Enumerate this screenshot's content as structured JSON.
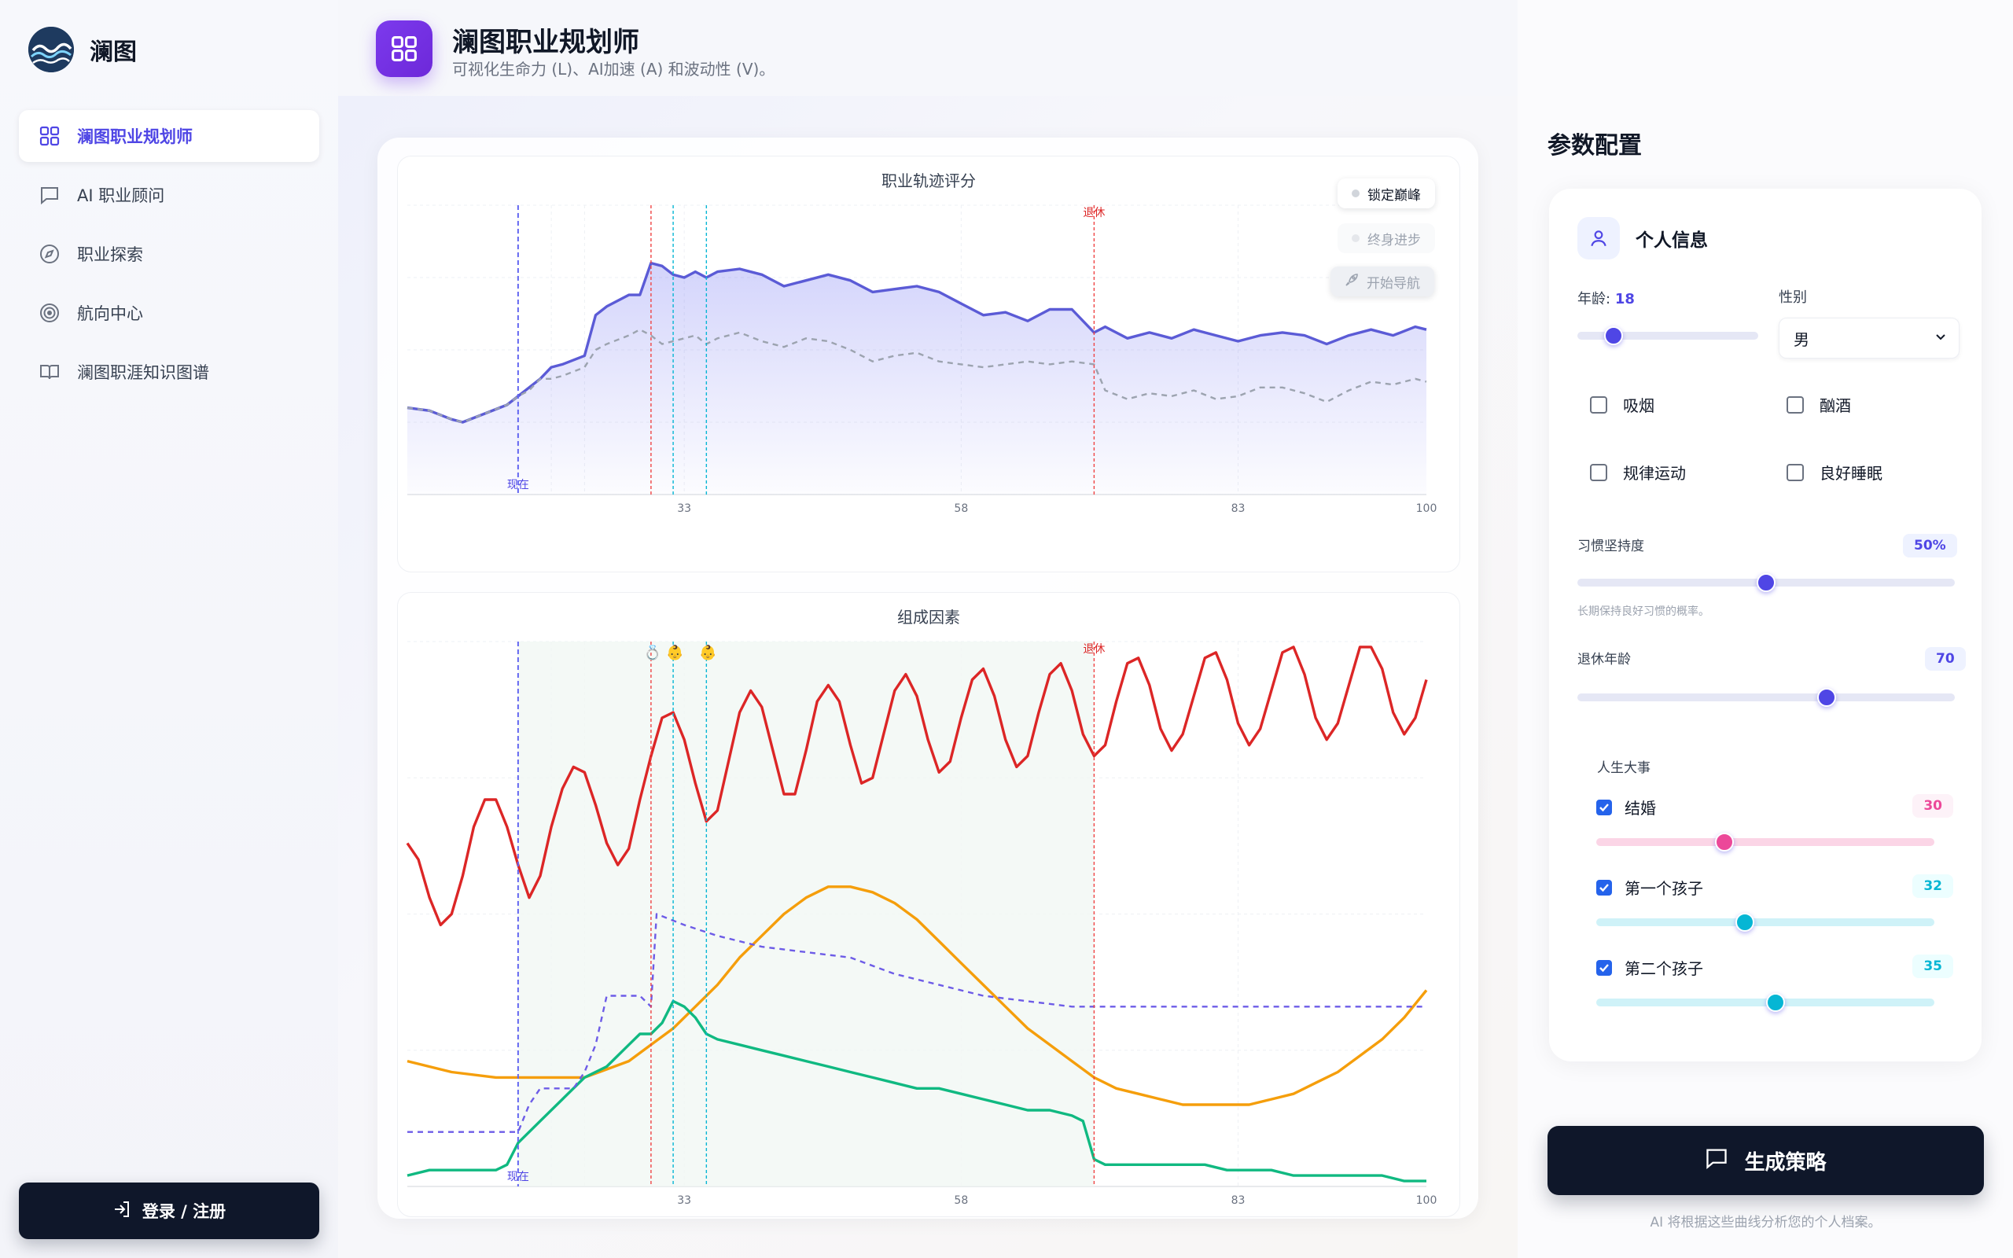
{
  "brand": {
    "name": "澜图"
  },
  "sidebar": {
    "items": [
      {
        "label": "澜图职业规划师",
        "icon": "grid-icon",
        "active": true
      },
      {
        "label": "AI 职业顾问",
        "icon": "chat-icon",
        "active": false
      },
      {
        "label": "职业探索",
        "icon": "compass-icon",
        "active": false
      },
      {
        "label": "航向中心",
        "icon": "target-icon",
        "active": false
      },
      {
        "label": "澜图职涯知识图谱",
        "icon": "book-icon",
        "active": false
      }
    ],
    "login_label": "登录 / 注册"
  },
  "header": {
    "title": "澜图职业规划师",
    "subtitle": "可视化生命力 (L)、AI加速 (A) 和波动性 (V)。"
  },
  "floating": {
    "lock_peak": "锁定巅峰",
    "lifelong": "终身进步",
    "start_nav": "开始导航"
  },
  "chart_data": [
    {
      "type": "area",
      "title": "职业轨迹评分",
      "x_ticks": [
        "33",
        "58",
        "83",
        "100"
      ],
      "xlim": [
        8,
        100
      ],
      "ylim": [
        0,
        100
      ],
      "markers": {
        "now_label": "现在",
        "now_age": 18,
        "retire_label": "退休",
        "retire_age": 70
      },
      "series": [
        {
          "style": "solid",
          "color": "#5b5bd6",
          "x": [
            8,
            10,
            12,
            13,
            15,
            17,
            18,
            19,
            20,
            21,
            22,
            24,
            25,
            26,
            28,
            29,
            30,
            31,
            32,
            33,
            34,
            35,
            36,
            38,
            40,
            42,
            44,
            46,
            48,
            50,
            52,
            54,
            56,
            58,
            60,
            62,
            64,
            66,
            68,
            70,
            71,
            73,
            75,
            77,
            79,
            81,
            83,
            85,
            87,
            89,
            91,
            93,
            95,
            97,
            99,
            100
          ],
          "y": [
            30,
            29,
            26,
            25,
            28,
            31,
            34,
            37,
            40,
            44,
            45,
            48,
            62,
            65,
            69,
            69,
            80,
            79,
            76,
            75,
            77,
            75,
            77,
            78,
            76,
            72,
            74,
            76,
            74,
            70,
            71,
            72,
            70,
            66,
            62,
            63,
            60,
            64,
            64,
            56,
            58,
            54,
            56,
            54,
            57,
            55,
            53,
            55,
            56,
            55,
            52,
            55,
            57,
            55,
            58,
            57
          ]
        },
        {
          "style": "dashed",
          "color": "#9ca3af",
          "x": [
            8,
            10,
            12,
            13,
            15,
            17,
            18,
            19,
            20,
            21,
            22,
            24,
            25,
            26,
            28,
            29,
            30,
            31,
            32,
            33,
            34,
            35,
            36,
            38,
            40,
            42,
            44,
            46,
            48,
            50,
            52,
            54,
            56,
            58,
            60,
            62,
            64,
            66,
            68,
            70,
            71,
            73,
            75,
            77,
            79,
            81,
            83,
            85,
            87,
            89,
            91,
            93,
            95,
            97,
            99,
            100
          ],
          "y": [
            30,
            29,
            26,
            25,
            28,
            31,
            34,
            36,
            40,
            40,
            41,
            44,
            50,
            52,
            55,
            57,
            55,
            52,
            53,
            54,
            55,
            52,
            54,
            56,
            53,
            51,
            54,
            53,
            50,
            46,
            48,
            49,
            46,
            45,
            44,
            45,
            46,
            45,
            46,
            45,
            36,
            33,
            35,
            34,
            36,
            33,
            34,
            37,
            37,
            35,
            32,
            36,
            39,
            38,
            40,
            39
          ]
        }
      ]
    },
    {
      "type": "line",
      "title": "组成因素",
      "x_ticks": [
        "33",
        "58",
        "83",
        "100"
      ],
      "xlim": [
        8,
        100
      ],
      "ylim": [
        0,
        100
      ],
      "markers": {
        "now_label": "现在",
        "retire_label": "退休",
        "events": [
          "💍",
          "👶",
          "👶"
        ]
      },
      "series": [
        {
          "style": "solid",
          "color": "#dc2626",
          "x": [
            8,
            9,
            10,
            11,
            12,
            13,
            14,
            15,
            16,
            17,
            18,
            19,
            20,
            21,
            22,
            23,
            24,
            25,
            26,
            27,
            28,
            29,
            30,
            31,
            32,
            33,
            34,
            35,
            36,
            37,
            38,
            39,
            40,
            41,
            42,
            43,
            44,
            45,
            46,
            47,
            48,
            49,
            50,
            51,
            52,
            53,
            54,
            55,
            56,
            57,
            58,
            59,
            60,
            61,
            62,
            63,
            64,
            65,
            66,
            67,
            68,
            69,
            70,
            71,
            72,
            73,
            74,
            75,
            76,
            77,
            78,
            79,
            80,
            81,
            82,
            83,
            84,
            85,
            86,
            87,
            88,
            89,
            90,
            91,
            92,
            93,
            94,
            95,
            96,
            97,
            98,
            99,
            100
          ],
          "y": [
            63,
            60,
            53,
            48,
            50,
            57,
            66,
            71,
            71,
            66,
            59,
            53,
            57,
            66,
            73,
            77,
            76,
            70,
            63,
            59,
            62,
            71,
            79,
            86,
            87,
            82,
            74,
            67,
            69,
            78,
            87,
            91,
            88,
            80,
            72,
            72,
            80,
            89,
            92,
            89,
            81,
            74,
            75,
            83,
            91,
            94,
            90,
            82,
            76,
            78,
            86,
            93,
            95,
            90,
            82,
            77,
            79,
            87,
            94,
            96,
            91,
            83,
            79,
            81,
            89,
            96,
            97,
            92,
            84,
            80,
            83,
            90,
            97,
            98,
            93,
            85,
            81,
            84,
            91,
            98,
            99,
            94,
            86,
            82,
            85,
            92,
            99,
            99,
            95,
            87,
            83,
            86,
            93
          ]
        },
        {
          "style": "solid",
          "color": "#f59e0b",
          "x": [
            8,
            12,
            16,
            20,
            24,
            28,
            30,
            32,
            34,
            36,
            38,
            40,
            42,
            44,
            46,
            48,
            50,
            52,
            54,
            56,
            58,
            60,
            62,
            64,
            66,
            68,
            70,
            72,
            74,
            76,
            78,
            80,
            82,
            84,
            86,
            88,
            90,
            92,
            94,
            96,
            98,
            100
          ],
          "y": [
            23,
            21,
            20,
            20,
            20,
            23,
            26,
            29,
            33,
            37,
            42,
            46,
            50,
            53,
            55,
            55,
            54,
            52,
            49,
            45,
            41,
            37,
            33,
            29,
            26,
            23,
            20,
            18,
            17,
            16,
            15,
            15,
            15,
            15,
            16,
            17,
            19,
            21,
            24,
            27,
            31,
            36
          ]
        },
        {
          "style": "solid",
          "color": "#10b981",
          "x": [
            8,
            10,
            12,
            14,
            16,
            17,
            18,
            20,
            22,
            24,
            26,
            28,
            29,
            30,
            31,
            32,
            33,
            34,
            35,
            36,
            38,
            40,
            42,
            44,
            46,
            48,
            50,
            52,
            54,
            56,
            58,
            60,
            62,
            64,
            66,
            68,
            69,
            70,
            71,
            72,
            74,
            76,
            78,
            80,
            82,
            84,
            86,
            88,
            90,
            92,
            94,
            96,
            98,
            100
          ],
          "y": [
            2,
            3,
            3,
            3,
            3,
            4,
            8,
            12,
            16,
            20,
            22,
            26,
            28,
            28,
            30,
            34,
            33,
            31,
            28,
            27,
            26,
            25,
            24,
            23,
            22,
            21,
            20,
            19,
            18,
            18,
            17,
            16,
            15,
            14,
            14,
            13,
            12,
            5,
            4,
            4,
            4,
            4,
            4,
            4,
            3,
            3,
            3,
            2,
            2,
            2,
            2,
            2,
            1,
            1
          ]
        },
        {
          "style": "dashed",
          "color": "#6d5ce7",
          "x": [
            8,
            12,
            16,
            17,
            18,
            19,
            20,
            21,
            22,
            23,
            24,
            25,
            26,
            27,
            28,
            29,
            30,
            30.5,
            33,
            36,
            40,
            44,
            48,
            52,
            56,
            60,
            64,
            68,
            70,
            74,
            78,
            82,
            86,
            90,
            94,
            98,
            100
          ],
          "y": [
            10,
            10,
            10,
            10,
            10,
            15,
            18,
            18,
            18,
            18,
            21,
            26,
            35,
            35,
            35,
            35,
            33,
            50,
            48,
            46,
            44,
            43,
            42,
            39,
            37,
            35,
            34,
            33,
            33,
            33,
            33,
            33,
            33,
            33,
            33,
            33,
            33
          ]
        }
      ]
    }
  ],
  "config": {
    "title": "参数配置",
    "personal_info": "个人信息",
    "age_label": "年龄:",
    "age_value": "18",
    "age_fraction": 0.2,
    "gender_label": "性别",
    "gender_value": "男",
    "habits": [
      {
        "label": "吸烟",
        "checked": false
      },
      {
        "label": "酗酒",
        "checked": false
      },
      {
        "label": "规律运动",
        "checked": false
      },
      {
        "label": "良好睡眠",
        "checked": false
      }
    ],
    "habit_persistence_label": "习惯坚持度",
    "habit_persistence_value": "50%",
    "habit_persistence_fraction": 0.5,
    "habit_hint": "长期保持良好习惯的概率。",
    "retire_label": "退休年龄",
    "retire_value": "70",
    "retire_fraction": 0.66,
    "life_events_label": "人生大事",
    "events": [
      {
        "label": "结婚",
        "value": "30",
        "checked": true,
        "fraction": 0.38,
        "color": "#ec4899",
        "track": "#fbd5e6",
        "badge_bg": "#fdf2f8"
      },
      {
        "label": "第一个孩子",
        "value": "32",
        "checked": true,
        "fraction": 0.44,
        "color": "#06b6d4",
        "track": "#cff2f8",
        "badge_bg": "#ecfeff"
      },
      {
        "label": "第二个孩子",
        "value": "35",
        "checked": true,
        "fraction": 0.53,
        "color": "#06b6d4",
        "track": "#cff2f8",
        "badge_bg": "#ecfeff"
      }
    ],
    "generate_label": "生成策略",
    "footnote": "AI 将根据这些曲线分析您的个人档案。"
  }
}
